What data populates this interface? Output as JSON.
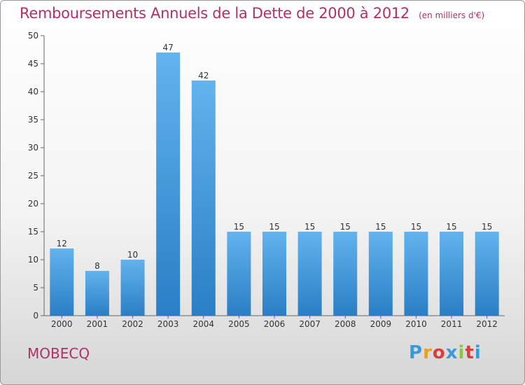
{
  "title": "Remboursements Annuels de la Dette de 2000 à 2012",
  "unit": "(en milliers d'€)",
  "footer": {
    "location": "MOBECQ"
  },
  "logo": {
    "text": "Proxiti",
    "colors": [
      "#3a9ad9",
      "#e8a020",
      "#e03a3a",
      "#3a9ad9",
      "#8cc43c",
      "#e03a3a",
      "#3a9ad9"
    ]
  },
  "colors": {
    "bar_top": "#62b3ee",
    "bar_bottom": "#2a7ec4",
    "accent": "#b0306a"
  },
  "chart_data": {
    "type": "bar",
    "categories": [
      "2000",
      "2001",
      "2002",
      "2003",
      "2004",
      "2005",
      "2006",
      "2007",
      "2008",
      "2009",
      "2010",
      "2011",
      "2012"
    ],
    "values": [
      12,
      8,
      10,
      47,
      42,
      15,
      15,
      15,
      15,
      15,
      15,
      15,
      15
    ],
    "title": "Remboursements Annuels de la Dette de 2000 à 2012",
    "ylim": [
      0,
      50
    ],
    "yticks": [
      0,
      5,
      10,
      15,
      20,
      25,
      30,
      35,
      40,
      45,
      50
    ],
    "grid": false
  }
}
